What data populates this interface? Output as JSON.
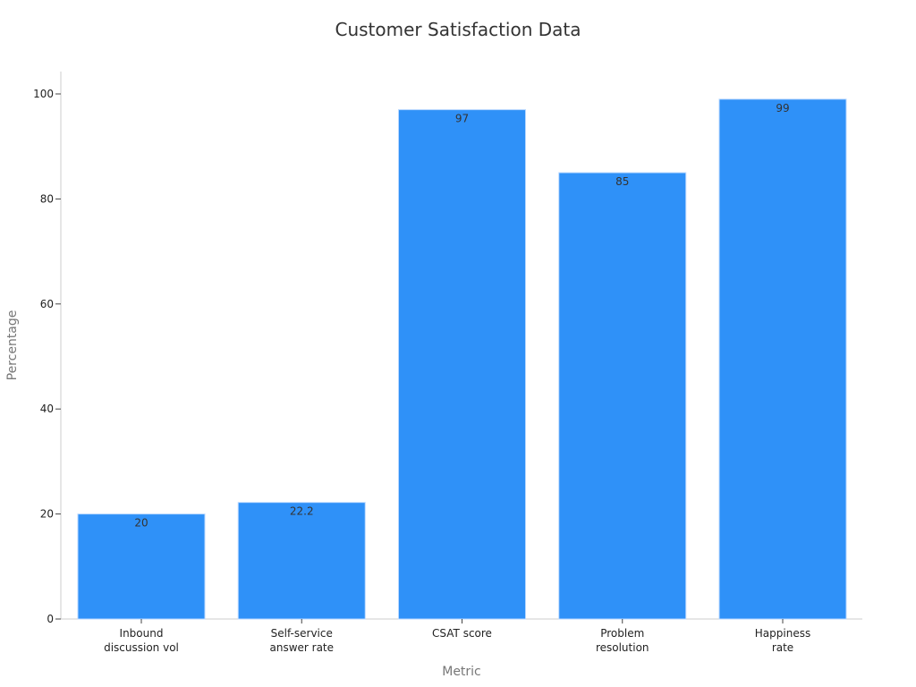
{
  "chart_data": {
    "type": "bar",
    "title": "Customer Satisfaction Data",
    "xlabel": "Metric",
    "ylabel": "Percentage",
    "categories": [
      [
        "Inbound",
        "discussion vol"
      ],
      [
        "Self-service",
        "answer rate"
      ],
      [
        "CSAT score"
      ],
      [
        "Problem",
        "resolution"
      ],
      [
        "Happiness",
        "rate"
      ]
    ],
    "values": [
      20,
      22.2,
      97,
      85,
      99
    ],
    "data_labels": [
      "20",
      "22.2",
      "97",
      "85",
      "99"
    ],
    "ylim": [
      0,
      100
    ],
    "yticks": [
      0,
      20,
      40,
      60,
      80,
      100
    ],
    "grid": false,
    "legend": "none",
    "bar_color": "#2f91f8"
  }
}
